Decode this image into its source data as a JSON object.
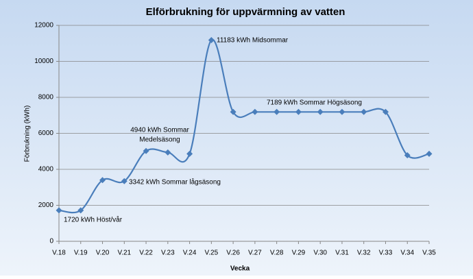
{
  "chart_data": {
    "type": "line",
    "title": "Elförbrukning för uppvärmning av vatten",
    "x_label": "Vecka",
    "y_label": "Förbrukning (kWh)",
    "categories": [
      "V.18",
      "V.19",
      "V.20",
      "V.21",
      "V.22",
      "V.23",
      "V.24",
      "V.25",
      "V.26",
      "V.27",
      "V.28",
      "V.29",
      "V.30",
      "V.31",
      "V.32",
      "V.33",
      "V.34",
      "V.35"
    ],
    "series": [
      {
        "color": "#4a7ebb",
        "values": [
          1720,
          1720,
          3400,
          3342,
          5020,
          4940,
          4860,
          11183,
          7189,
          7189,
          7189,
          7189,
          7189,
          7189,
          7189,
          7189,
          4780,
          4860
        ]
      }
    ],
    "ylim": [
      0,
      12000
    ],
    "yticks": [
      0,
      2000,
      4000,
      6000,
      8000,
      10000,
      12000
    ],
    "grid": true,
    "annotations": [
      [
        "1720 kWh Höst/vår"
      ],
      [
        "3342 kWh Sommar lågsäsong"
      ],
      [
        "4940 kWh Sommar",
        "Medelsäsong"
      ],
      [
        "11183 kWh Midsommar"
      ],
      [
        "7189 kWh Sommar Högsäsong"
      ]
    ]
  }
}
